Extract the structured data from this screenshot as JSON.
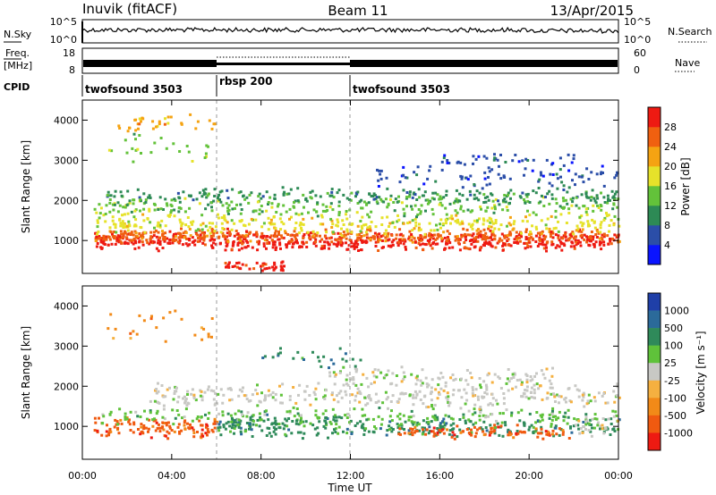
{
  "header": {
    "station": "Inuvik (fitACF)",
    "beam": "Beam 11",
    "date": "13/Apr/2015"
  },
  "strip": {
    "nsky_label": "N.Sky",
    "nsky_ticks": [
      "10^5",
      "10^0"
    ],
    "nsearch_label": "N.Search",
    "nsearch_ticks": [
      "10^5",
      "10^0"
    ],
    "freq_label_line1": "Freq.",
    "freq_label_line2": "[MHz]",
    "freq_ticks": [
      "18",
      "8"
    ],
    "nave_label": "Nave",
    "nave_ticks": [
      "60",
      "0"
    ],
    "cpid_label": "CPID",
    "cpid_segments": [
      {
        "label": "twofsound 3503",
        "start_hour": 0,
        "end_hour": 6
      },
      {
        "label": "rbsp 200",
        "start_hour": 6,
        "end_hour": 12
      },
      {
        "label": "twofsound 3503",
        "start_hour": 12,
        "end_hour": 24
      }
    ]
  },
  "chart_data": [
    {
      "type": "heatmap",
      "title": "",
      "xlabel": "Time UT",
      "ylabel": "Slant Range [km]",
      "x_ticks": [
        "00:00",
        "04:00",
        "08:00",
        "12:00",
        "16:00",
        "20:00",
        "00:00"
      ],
      "xlim_hours": [
        0,
        24
      ],
      "ylim": [
        180,
        4500
      ],
      "y_ticks": [
        1000,
        2000,
        3000,
        4000
      ],
      "colorbar": {
        "label": "Power [dB]",
        "ticks": [
          "4",
          "8",
          "12",
          "16",
          "20",
          "24",
          "28"
        ],
        "colors": [
          "#0a14ff",
          "#2b4ea8",
          "#2d8a55",
          "#63c23a",
          "#e6e22a",
          "#f5a312",
          "#f06010",
          "#ee1a12"
        ]
      },
      "scatter_bands": [
        {
          "center_km": 950,
          "width_km": 250,
          "start": 0.5,
          "end": 24,
          "color_index": 7,
          "density": 0.9
        },
        {
          "center_km": 1100,
          "width_km": 200,
          "start": 0.5,
          "end": 24,
          "color_index": 6,
          "density": 0.7
        },
        {
          "center_km": 1400,
          "width_km": 300,
          "start": 0.5,
          "end": 24,
          "color_index": 4,
          "density": 0.55
        },
        {
          "center_km": 1850,
          "width_km": 300,
          "start": 0.5,
          "end": 24,
          "color_index": 3,
          "density": 0.45
        },
        {
          "center_km": 2100,
          "width_km": 250,
          "start": 1,
          "end": 24,
          "color_index": 2,
          "density": 0.4
        },
        {
          "center_km": 2600,
          "width_km": 300,
          "start": 13,
          "end": 24,
          "color_index": 1,
          "density": 0.3
        },
        {
          "center_km": 3000,
          "width_km": 200,
          "start": 16,
          "end": 22,
          "color_index": 1,
          "density": 0.25
        },
        {
          "center_km": 3900,
          "width_km": 300,
          "start": 1.5,
          "end": 6,
          "color_index": 5,
          "density": 0.3
        },
        {
          "center_km": 3300,
          "width_km": 400,
          "start": 1,
          "end": 6,
          "color_index": 3,
          "density": 0.2
        },
        {
          "center_km": 350,
          "width_km": 150,
          "start": 6.3,
          "end": 9,
          "color_index": 7,
          "density": 0.6
        }
      ]
    },
    {
      "type": "heatmap",
      "title": "",
      "xlabel": "Time UT",
      "ylabel": "Slant Range [km]",
      "x_ticks": [
        "00:00",
        "04:00",
        "08:00",
        "12:00",
        "16:00",
        "20:00",
        "00:00"
      ],
      "xlim_hours": [
        0,
        24
      ],
      "ylim": [
        180,
        4500
      ],
      "y_ticks": [
        1000,
        2000,
        3000,
        4000
      ],
      "colorbar": {
        "label": "Velocity [m s⁻¹]",
        "ticks": [
          "1000",
          "500",
          "100",
          "25",
          "-25",
          "-100",
          "-500",
          "-1000"
        ],
        "colors": [
          "#1f3fa8",
          "#2b6a9a",
          "#2f8a5a",
          "#5fc23a",
          "#c8c8c4",
          "#f5b040",
          "#f28a18",
          "#f05a10",
          "#ee1a12"
        ]
      },
      "scatter_bands": [
        {
          "center_km": 950,
          "width_km": 300,
          "start": 0.5,
          "end": 6,
          "color_index": 7,
          "density": 0.85
        },
        {
          "center_km": 1000,
          "width_km": 350,
          "start": 6,
          "end": 12.5,
          "color_index": 2,
          "density": 0.85
        },
        {
          "center_km": 950,
          "width_km": 250,
          "start": 12.5,
          "end": 24,
          "color_index": 2,
          "density": 0.55
        },
        {
          "center_km": 850,
          "width_km": 200,
          "start": 14,
          "end": 22,
          "color_index": 7,
          "density": 0.45
        },
        {
          "center_km": 1250,
          "width_km": 250,
          "start": 0.5,
          "end": 24,
          "color_index": 3,
          "density": 0.35
        },
        {
          "center_km": 1750,
          "width_km": 350,
          "start": 3,
          "end": 24,
          "color_index": 4,
          "density": 0.6
        },
        {
          "center_km": 2200,
          "width_km": 300,
          "start": 11,
          "end": 21,
          "color_index": 4,
          "density": 0.45
        },
        {
          "center_km": 2700,
          "width_km": 300,
          "start": 8,
          "end": 13,
          "color_index": 2,
          "density": 0.2
        },
        {
          "center_km": 3500,
          "width_km": 600,
          "start": 1,
          "end": 6,
          "color_index": 6,
          "density": 0.2
        },
        {
          "center_km": 1000,
          "width_km": 300,
          "start": 22,
          "end": 24,
          "color_index": 4,
          "density": 0.5
        }
      ]
    }
  ]
}
